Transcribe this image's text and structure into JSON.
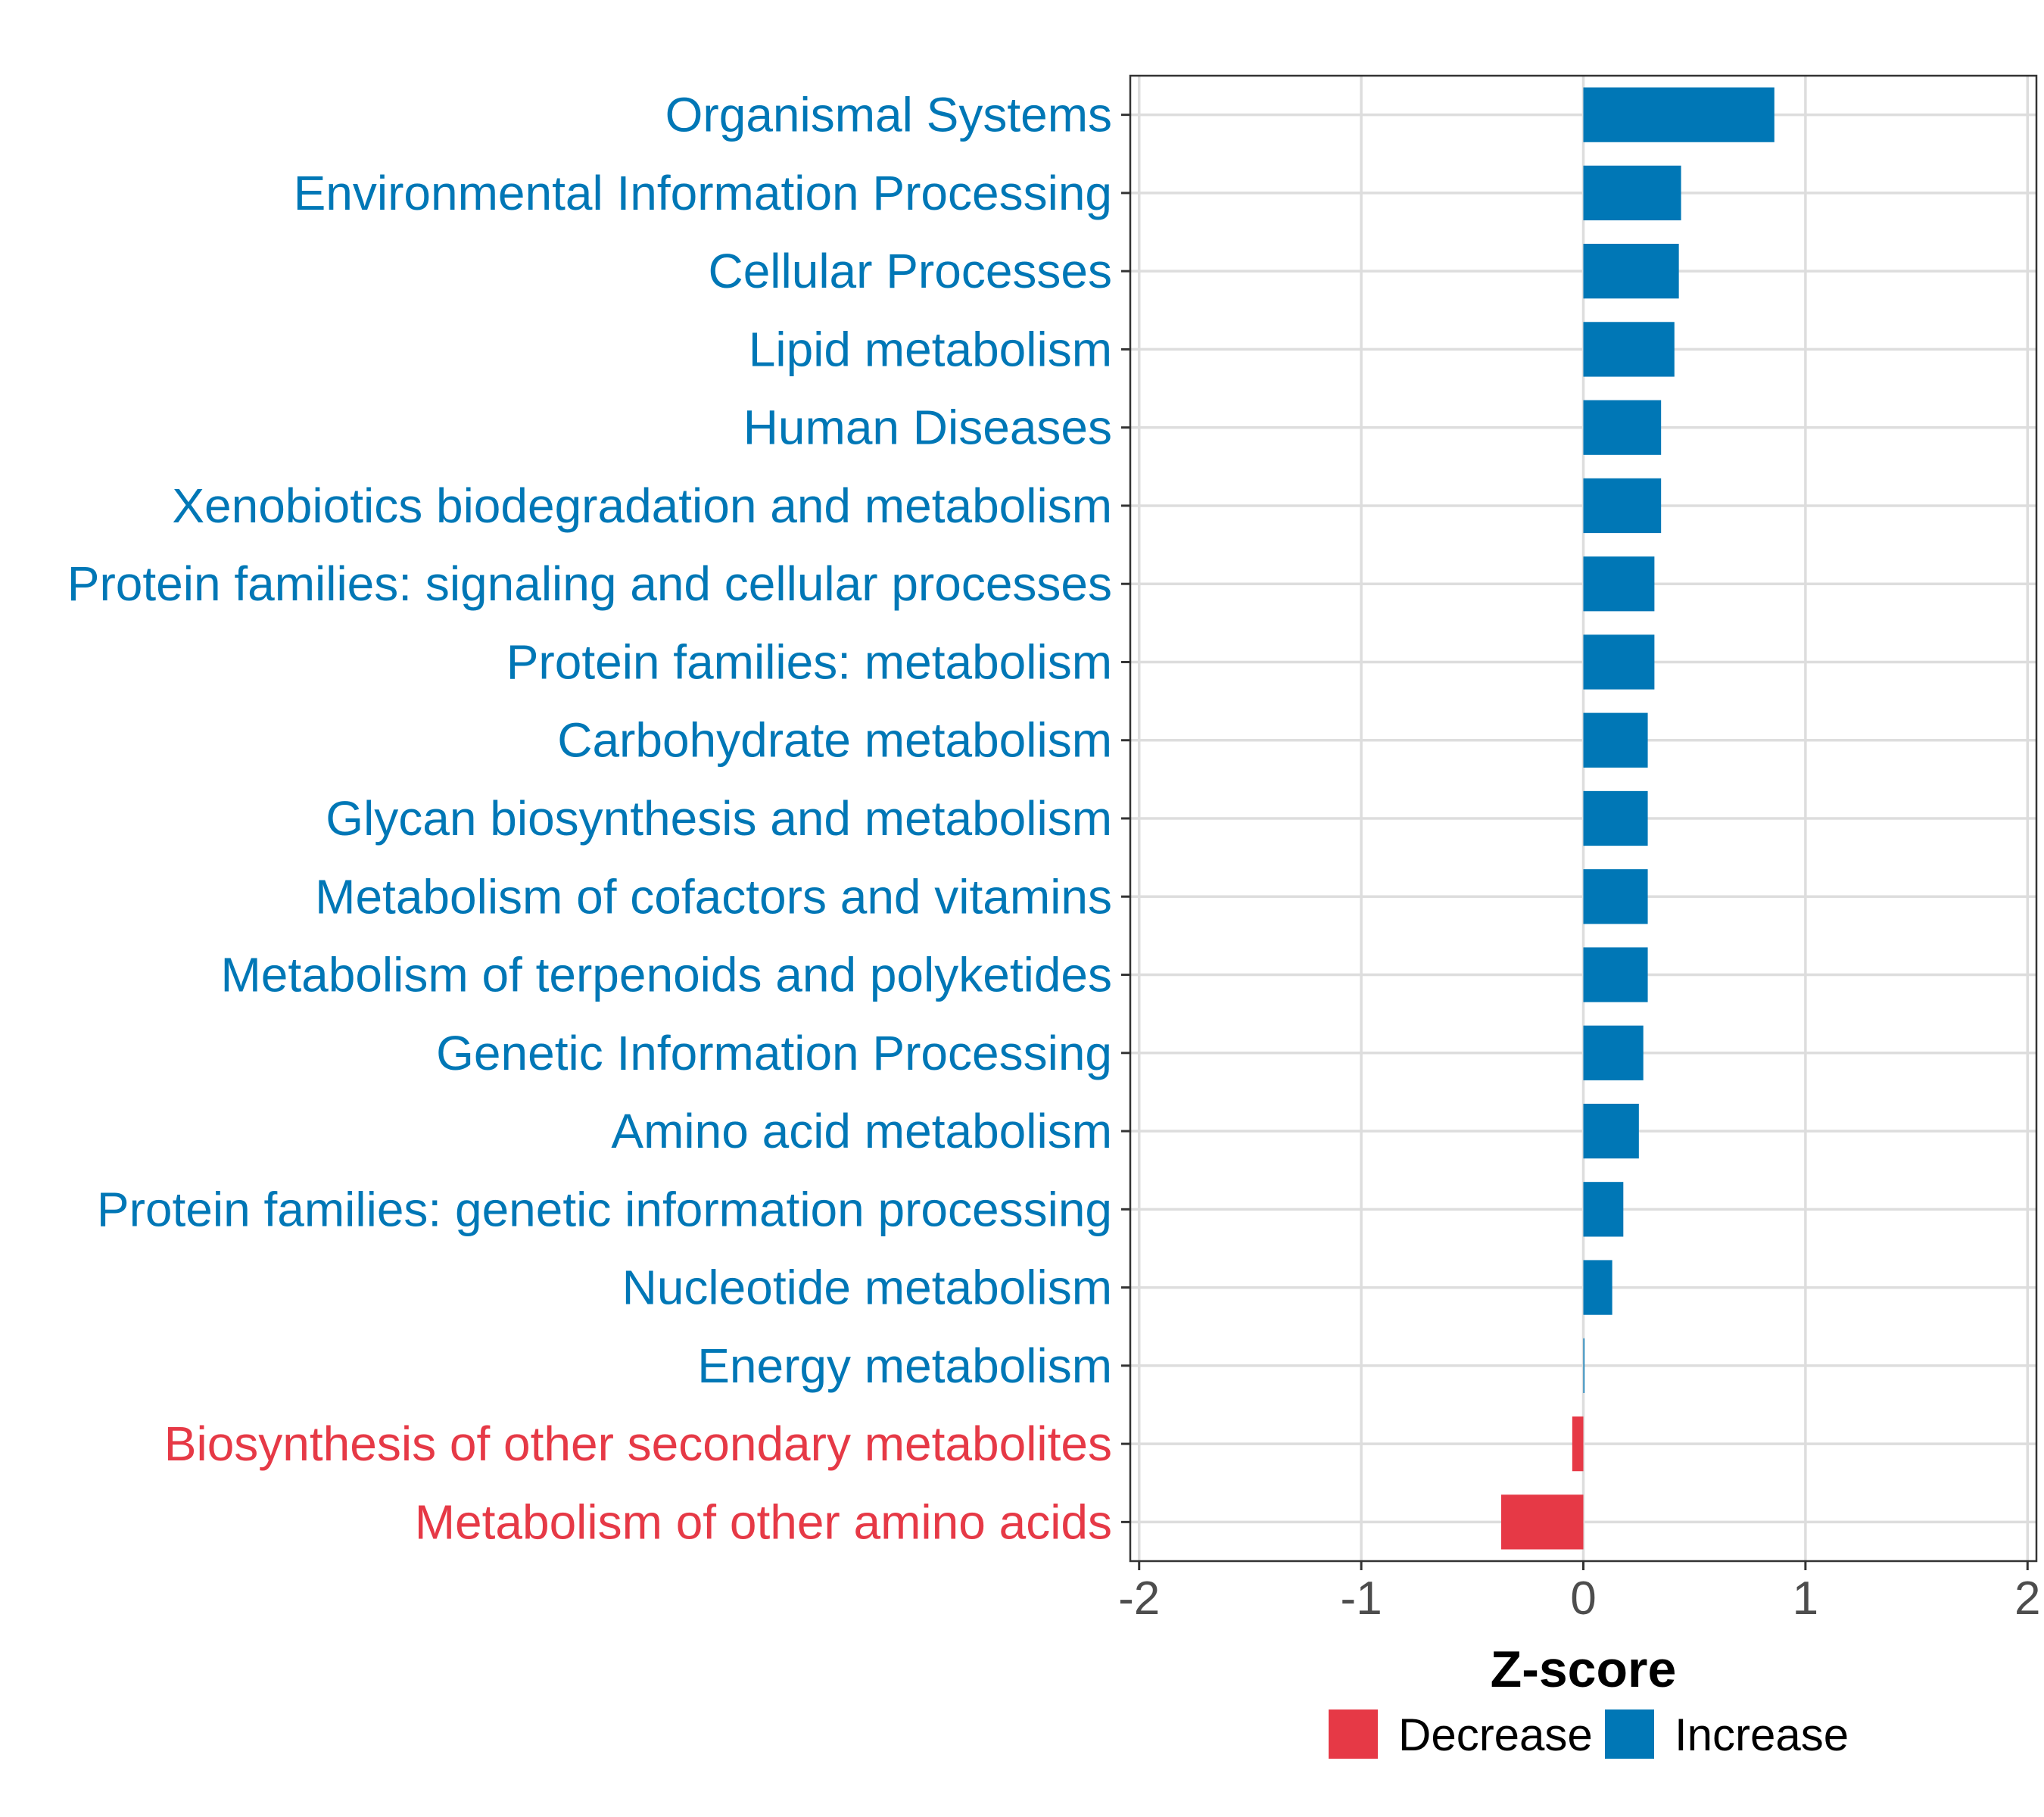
{
  "chart_data": {
    "type": "bar",
    "orientation": "horizontal",
    "categories": [
      "Organismal Systems",
      "Environmental Information Processing",
      "Cellular Processes",
      "Lipid metabolism",
      "Human Diseases",
      "Xenobiotics biodegradation and metabolism",
      "Protein families: signaling and cellular processes",
      "Protein families: metabolism",
      "Carbohydrate metabolism",
      "Glycan biosynthesis and metabolism",
      "Metabolism of cofactors and vitamins",
      "Metabolism of terpenoids and polyketides",
      "Genetic Information Processing",
      "Amino acid metabolism",
      "Protein families: genetic information processing",
      "Nucleotide metabolism",
      "Energy metabolism",
      "Biosynthesis of other secondary metabolites",
      "Metabolism of other amino acids"
    ],
    "values": [
      0.86,
      0.44,
      0.43,
      0.41,
      0.35,
      0.35,
      0.32,
      0.32,
      0.29,
      0.29,
      0.29,
      0.29,
      0.27,
      0.25,
      0.18,
      0.13,
      0.005,
      -0.05,
      -0.37
    ],
    "groups": [
      "Increase",
      "Increase",
      "Increase",
      "Increase",
      "Increase",
      "Increase",
      "Increase",
      "Increase",
      "Increase",
      "Increase",
      "Increase",
      "Increase",
      "Increase",
      "Increase",
      "Increase",
      "Increase",
      "Increase",
      "Decrease",
      "Decrease"
    ],
    "xlabel": "Z-score",
    "ylabel": "",
    "xlim": [
      -2.04,
      2.04
    ],
    "xticks": [
      -2,
      -1,
      0,
      1,
      2
    ],
    "xtick_labels": [
      "-2",
      "-1",
      "0",
      "1",
      "2"
    ],
    "grid": true,
    "legend": {
      "position": "bottom",
      "entries": [
        {
          "label": "Decrease",
          "color": "#e63946"
        },
        {
          "label": "Increase",
          "color": "#0077b6"
        }
      ]
    },
    "colors": {
      "Increase": "#0077b6",
      "Decrease": "#e63946"
    }
  }
}
